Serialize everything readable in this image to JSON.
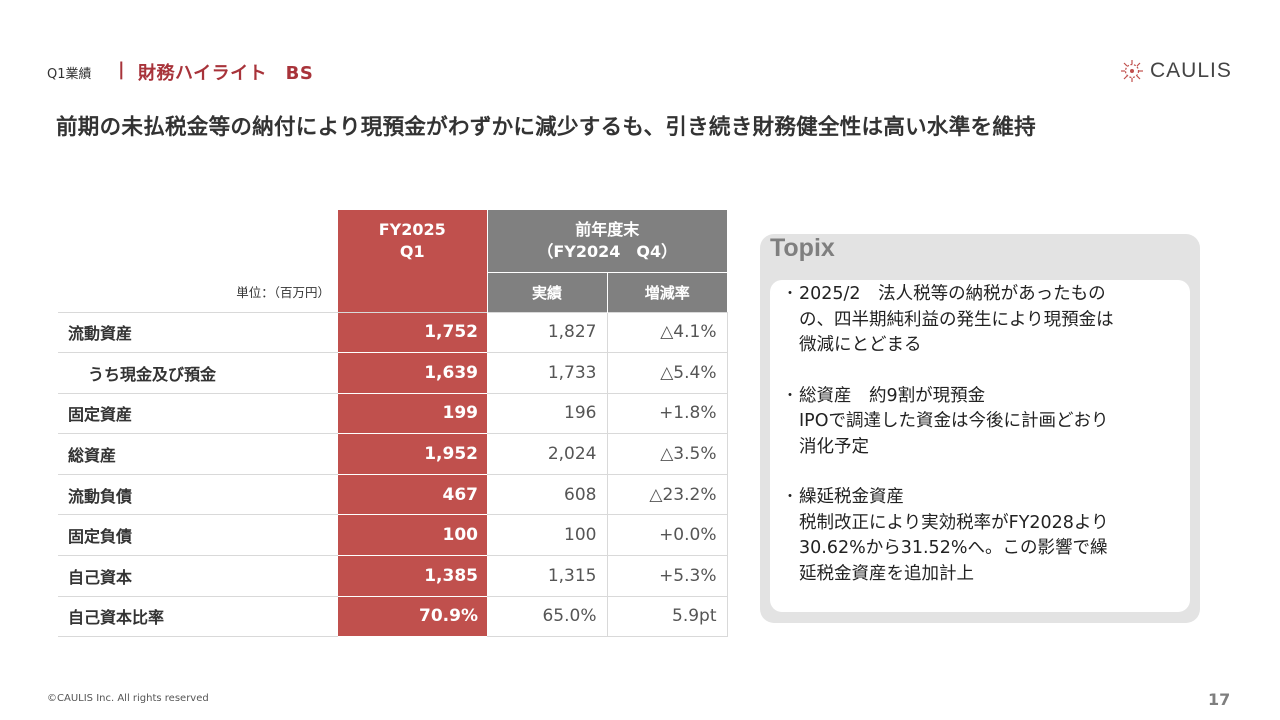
{
  "header": {
    "section": "Q1業績",
    "separator": "|",
    "title": "財務ハイライト　BS"
  },
  "logo": {
    "text": "CAULIS",
    "color": "#c0504d"
  },
  "headline": "前期の未払税金等の納付により現預金がわずかに減少するも、引き続き財務健全性は高い水準を維持",
  "table": {
    "header_current_line1": "FY2025",
    "header_current_line2": "Q1",
    "header_prev_line1": "前年度末",
    "header_prev_line2": "（FY2024　Q4）",
    "unit": "単位：（百万円）",
    "sub_actual": "実績",
    "sub_change": "増減率",
    "rows": [
      {
        "label": "流動資産",
        "current": "1,752",
        "prev": "1,827",
        "change": "△4.1%"
      },
      {
        "label": "うち現金及び預金",
        "current": "1,639",
        "prev": "1,733",
        "change": "△5.4%"
      },
      {
        "label": "固定資産",
        "current": "199",
        "prev": "196",
        "change": "+1.8%"
      },
      {
        "label": "総資産",
        "current": "1,952",
        "prev": "2,024",
        "change": "△3.5%"
      },
      {
        "label": "流動負債",
        "current": "467",
        "prev": "608",
        "change": "△23.2%"
      },
      {
        "label": "固定負債",
        "current": "100",
        "prev": "100",
        "change": "+0.0%"
      },
      {
        "label": "自己資本",
        "current": "1,385",
        "prev": "1,315",
        "change": "+5.3%"
      },
      {
        "label": "自己資本比率",
        "current": "70.9%",
        "prev": "65.0%",
        "change": "5.9pt"
      }
    ],
    "colors": {
      "current": "#c0504d",
      "header_gray": "#808080"
    }
  },
  "topix": {
    "title": "Topix",
    "bullet": "・",
    "items": [
      {
        "lines": [
          "2025/2　法人税等の納税があったもの",
          "の、四半期純利益の発生により現預金は",
          "微減にとどまる"
        ]
      },
      {
        "lines": [
          "総資産　約9割が現預金",
          "IPOで調達した資金は今後に計画どおり",
          "消化予定"
        ]
      },
      {
        "lines": [
          "繰延税金資産",
          "税制改正により実効税率がFY2028より",
          "30.62%から31.52%へ。この影響で繰",
          "延税金資産を追加計上"
        ]
      }
    ]
  },
  "footer": {
    "copyright": "©CAULIS Inc. All rights reserved",
    "page_number": "17"
  }
}
